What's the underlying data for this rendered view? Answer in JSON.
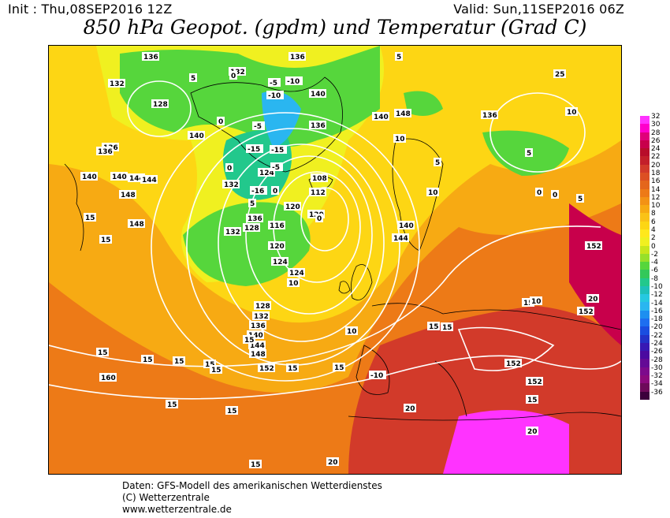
{
  "header": {
    "init": "Init : Thu,08SEP2016 12Z",
    "valid": "Valid: Sun,11SEP2016 06Z",
    "title": "850 hPa Geopot. (gpdm) und Temperatur (Grad C)"
  },
  "map": {
    "variable_fields": [
      "850 hPa geopotential (gpdm)",
      "850 hPa temperature (Grad C)"
    ],
    "geopotential_labels": [
      "136",
      "132",
      "132",
      "128",
      "136",
      "140",
      "144",
      "148",
      "136",
      "140",
      "132",
      "124",
      "120",
      "112",
      "108",
      "116",
      "120",
      "124",
      "124",
      "128",
      "132",
      "136",
      "140",
      "144",
      "148",
      "152",
      "140",
      "148",
      "152",
      "160",
      "136",
      "144",
      "140",
      "136",
      "132",
      "140",
      "144",
      "148",
      "152",
      "152",
      "152",
      "120",
      "128",
      "136",
      "140",
      "136"
    ],
    "temperature_labels": [
      "15",
      "15",
      "15",
      "15",
      "15",
      "15",
      "15",
      "15",
      "15",
      "15",
      "15",
      "15",
      "15",
      "15",
      "15",
      "15",
      "15",
      "10",
      "10",
      "10",
      "10",
      "10",
      "10",
      "5",
      "5",
      "5",
      "5",
      "5",
      "5",
      "0",
      "0",
      "0",
      "0",
      "0",
      "0",
      "0",
      "-5",
      "-5",
      "-5",
      "-10",
      "-10",
      "-15",
      "-15",
      "-16",
      "-10",
      "20",
      "20",
      "20",
      "20",
      "25"
    ],
    "colors": {
      "land_outline": "#000000",
      "isohypse": "#ffffff"
    }
  },
  "scale": {
    "levels": [
      "32",
      "30",
      "28",
      "26",
      "24",
      "22",
      "20",
      "18",
      "16",
      "14",
      "12",
      "10",
      "8",
      "6",
      "4",
      "2",
      "0",
      "-2",
      "-4",
      "-6",
      "-8",
      "-10",
      "-12",
      "-14",
      "-16",
      "-18",
      "-20",
      "-22",
      "-24",
      "-26",
      "-28",
      "-30",
      "-32",
      "-34",
      "-36"
    ],
    "colors": [
      "#ff33ff",
      "#ff00cc",
      "#e0007a",
      "#c8004b",
      "#b80d2a",
      "#c31f2a",
      "#d23a2a",
      "#dc4f23",
      "#e4661c",
      "#ed7a17",
      "#f39215",
      "#f7aa13",
      "#fac217",
      "#fdd614",
      "#ffe81c",
      "#f0f020",
      "#c8e61c",
      "#97e02a",
      "#56d63c",
      "#33c85a",
      "#22c88c",
      "#1ec0b9",
      "#26c8e0",
      "#2ab6f0",
      "#1d8ff0",
      "#1d6ef0",
      "#1a4de0",
      "#2332c8",
      "#3719b4",
      "#4b0aa0",
      "#640a96",
      "#7d0a8c",
      "#8c0a7d",
      "#6e0a5a",
      "#3c003c"
    ]
  },
  "credits": [
    "Daten: GFS-Modell des amerikanischen Wetterdienstes",
    "(C) Wetterzentrale",
    "www.wetterzentrale.de"
  ]
}
